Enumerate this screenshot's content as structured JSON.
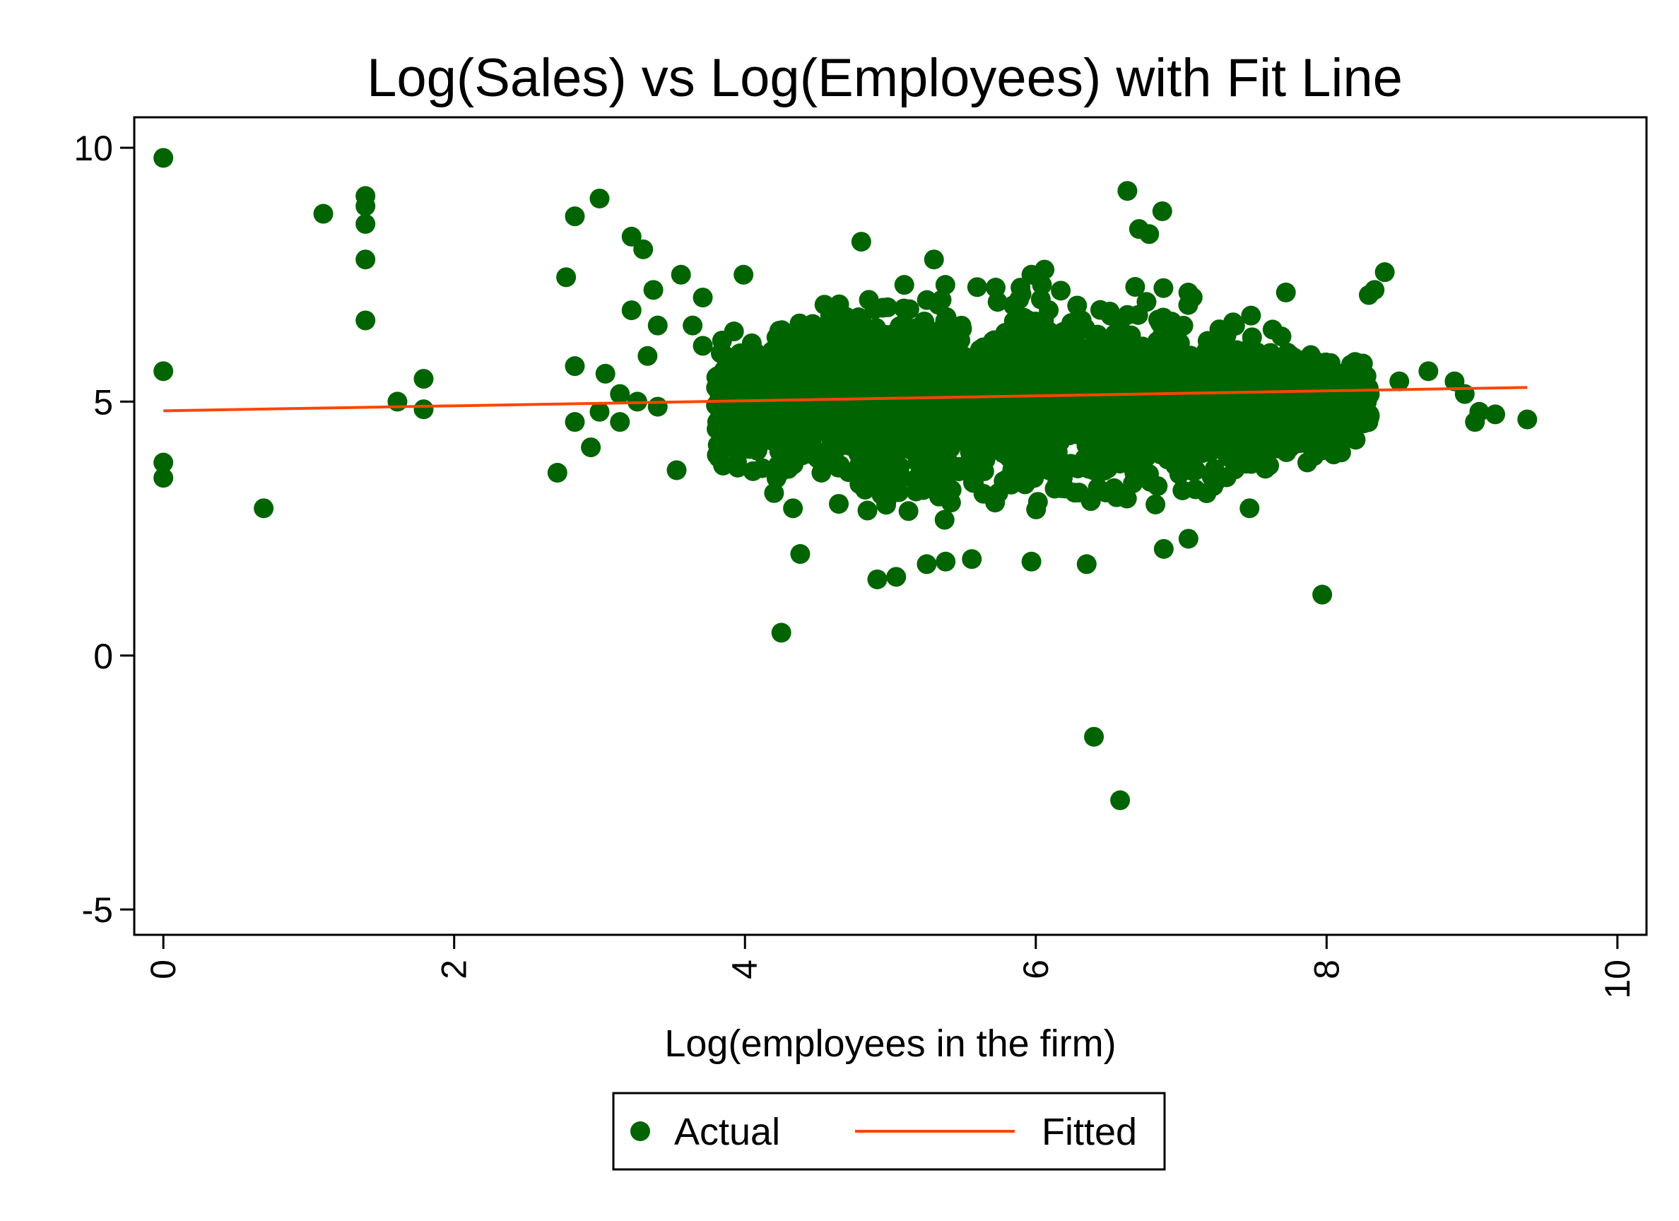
{
  "chart_data": {
    "type": "scatter",
    "title": "Log(Sales) vs Log(Employees) with Fit Line",
    "xlabel": "Log(employees in the firm)",
    "ylabel": "",
    "xlim": [
      -0.2,
      10.2
    ],
    "ylim": [
      -5.5,
      10.6
    ],
    "xticks": [
      0,
      2,
      4,
      6,
      8,
      10
    ],
    "xtick_labels": [
      "0",
      "2",
      "4",
      "6",
      "8",
      "10"
    ],
    "yticks": [
      -5,
      0,
      5,
      10
    ],
    "ytick_labels": [
      "-5",
      "0",
      "5",
      "10"
    ],
    "grid": false,
    "legend_position": "bottom",
    "series": [
      {
        "name": "Actual",
        "kind": "scatter",
        "color": "#006400",
        "points": [
          [
            0,
            9.8
          ],
          [
            0,
            5.6
          ],
          [
            0,
            3.8
          ],
          [
            0,
            3.5
          ],
          [
            0.69,
            2.9
          ],
          [
            1.1,
            8.7
          ],
          [
            1.39,
            9.05
          ],
          [
            1.39,
            8.85
          ],
          [
            1.39,
            8.5
          ],
          [
            1.39,
            7.8
          ],
          [
            1.39,
            6.6
          ],
          [
            1.61,
            5.0
          ],
          [
            1.79,
            5.45
          ],
          [
            1.79,
            4.85
          ],
          [
            2.71,
            3.6
          ],
          [
            2.77,
            7.45
          ],
          [
            2.83,
            8.65
          ],
          [
            2.83,
            5.7
          ],
          [
            2.83,
            4.6
          ],
          [
            2.94,
            4.1
          ],
          [
            3.0,
            9.0
          ],
          [
            3.0,
            4.8
          ],
          [
            3.04,
            5.55
          ],
          [
            3.14,
            5.15
          ],
          [
            3.14,
            4.6
          ],
          [
            3.22,
            8.25
          ],
          [
            3.22,
            6.8
          ],
          [
            3.26,
            5.0
          ],
          [
            3.3,
            8.0
          ],
          [
            3.33,
            5.9
          ],
          [
            3.37,
            7.2
          ],
          [
            3.4,
            6.5
          ],
          [
            3.4,
            4.9
          ],
          [
            3.53,
            3.65
          ],
          [
            3.56,
            7.5
          ],
          [
            3.64,
            6.5
          ],
          [
            3.71,
            7.05
          ],
          [
            3.71,
            6.1
          ],
          [
            3.95,
            3.7
          ],
          [
            3.99,
            7.5
          ],
          [
            4.2,
            3.2
          ],
          [
            4.25,
            0.45
          ],
          [
            4.33,
            2.9
          ],
          [
            4.38,
            2.0
          ],
          [
            4.8,
            8.15
          ],
          [
            4.91,
            1.5
          ],
          [
            5.04,
            1.55
          ],
          [
            5.3,
            7.8
          ],
          [
            5.25,
            1.8
          ],
          [
            5.38,
            1.85
          ],
          [
            5.56,
            1.9
          ],
          [
            5.97,
            1.85
          ],
          [
            5.97,
            7.5
          ],
          [
            6.06,
            7.6
          ],
          [
            6.35,
            1.8
          ],
          [
            6.4,
            -1.6
          ],
          [
            6.58,
            -2.85
          ],
          [
            6.63,
            9.15
          ],
          [
            6.71,
            8.4
          ],
          [
            6.78,
            8.3
          ],
          [
            6.87,
            8.75
          ],
          [
            6.88,
            2.1
          ],
          [
            7.05,
            2.3
          ],
          [
            7.47,
            2.9
          ],
          [
            7.72,
            7.15
          ],
          [
            7.97,
            1.2
          ],
          [
            8.1,
            4.0
          ],
          [
            8.2,
            4.25
          ],
          [
            8.25,
            5.75
          ],
          [
            8.29,
            7.1
          ],
          [
            8.33,
            7.2
          ],
          [
            8.4,
            7.55
          ],
          [
            8.5,
            5.4
          ],
          [
            8.7,
            5.6
          ],
          [
            8.88,
            5.4
          ],
          [
            8.95,
            5.15
          ],
          [
            9.02,
            4.6
          ],
          [
            9.05,
            4.8
          ],
          [
            9.16,
            4.75
          ],
          [
            9.38,
            4.65
          ]
        ],
        "dense_cloud": {
          "x_range": [
            3.8,
            8.3
          ],
          "x_center": 5.8,
          "y_center": 5.0,
          "y_spread_core": 1.8,
          "y_range_at_center": [
            2.0,
            7.3
          ]
        }
      },
      {
        "name": "Fitted",
        "kind": "line",
        "color": "#ff4500",
        "x": [
          0,
          9.38
        ],
        "y": [
          4.82,
          5.28
        ]
      }
    ]
  }
}
